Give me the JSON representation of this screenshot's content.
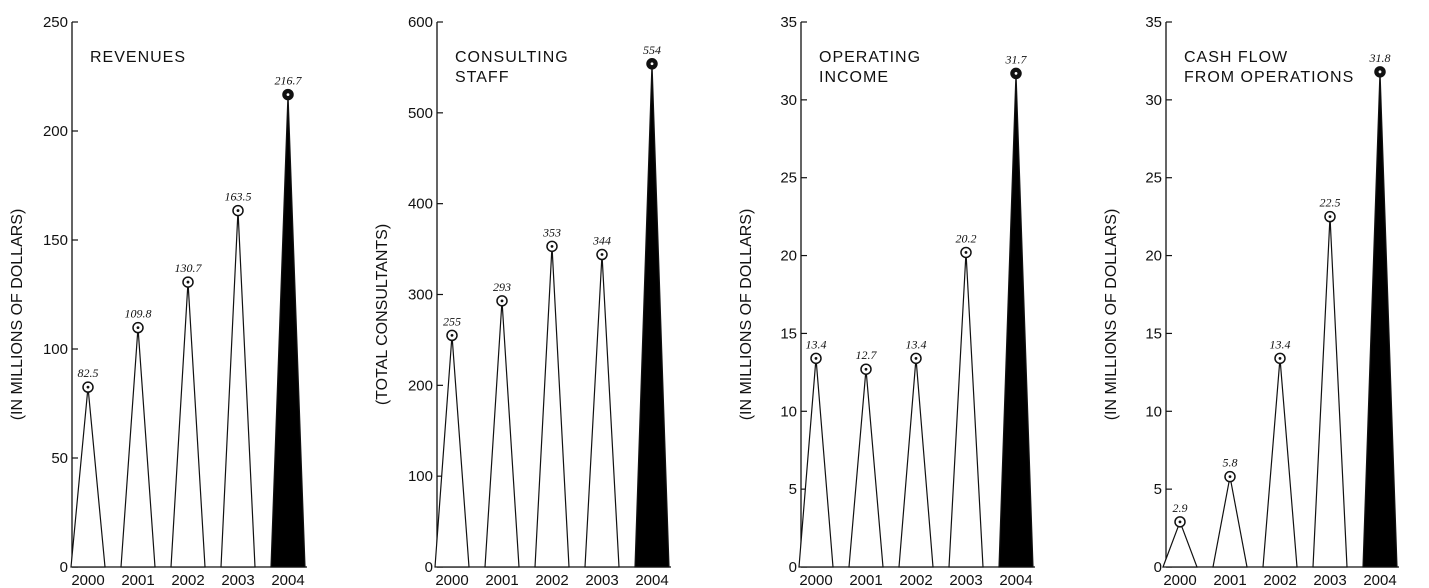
{
  "chart_data": [
    {
      "type": "bar",
      "title": [
        "REVENUES"
      ],
      "ylabel": "(IN MILLIONS OF DOLLARS)",
      "categories": [
        "2000",
        "2001",
        "2002",
        "2003",
        "2004"
      ],
      "values": [
        82.5,
        109.8,
        130.7,
        163.5,
        216.7
      ],
      "value_labels": [
        "82.5",
        "109.8",
        "130.7",
        "163.5",
        "216.7"
      ],
      "yticks": [
        "0",
        "50",
        "100",
        "150",
        "200",
        "250"
      ],
      "ylim": [
        0,
        250
      ],
      "highlight_last": true
    },
    {
      "type": "bar",
      "title": [
        "CONSULTING",
        "STAFF"
      ],
      "ylabel": "(TOTAL CONSULTANTS)",
      "categories": [
        "2000",
        "2001",
        "2002",
        "2003",
        "2004"
      ],
      "values": [
        255,
        293,
        353,
        344,
        554
      ],
      "value_labels": [
        "255",
        "293",
        "353",
        "344",
        "554"
      ],
      "yticks": [
        "0",
        "100",
        "200",
        "300",
        "400",
        "500",
        "600"
      ],
      "ylim": [
        0,
        600
      ],
      "highlight_last": true
    },
    {
      "type": "bar",
      "title": [
        "OPERATING",
        "INCOME"
      ],
      "ylabel": "(IN MILLIONS OF DOLLARS)",
      "categories": [
        "2000",
        "2001",
        "2002",
        "2003",
        "2004"
      ],
      "values": [
        13.4,
        12.7,
        13.4,
        20.2,
        31.7
      ],
      "value_labels": [
        "13.4",
        "12.7",
        "13.4",
        "20.2",
        "31.7"
      ],
      "yticks": [
        "0",
        "5",
        "10",
        "15",
        "20",
        "25",
        "30",
        "35"
      ],
      "ylim": [
        0,
        35
      ],
      "highlight_last": true
    },
    {
      "type": "bar",
      "title": [
        "CASH FLOW",
        "FROM OPERATIONS"
      ],
      "ylabel": "(IN MILLIONS OF DOLLARS)",
      "categories": [
        "2000",
        "2001",
        "2002",
        "2003",
        "2004"
      ],
      "values": [
        2.9,
        5.8,
        13.4,
        22.5,
        31.8
      ],
      "value_labels": [
        "2.9",
        "5.8",
        "13.4",
        "22.5",
        "31.8"
      ],
      "yticks": [
        "0",
        "5",
        "10",
        "15",
        "20",
        "25",
        "30",
        "35"
      ],
      "ylim": [
        0,
        35
      ],
      "highlight_last": true
    }
  ]
}
